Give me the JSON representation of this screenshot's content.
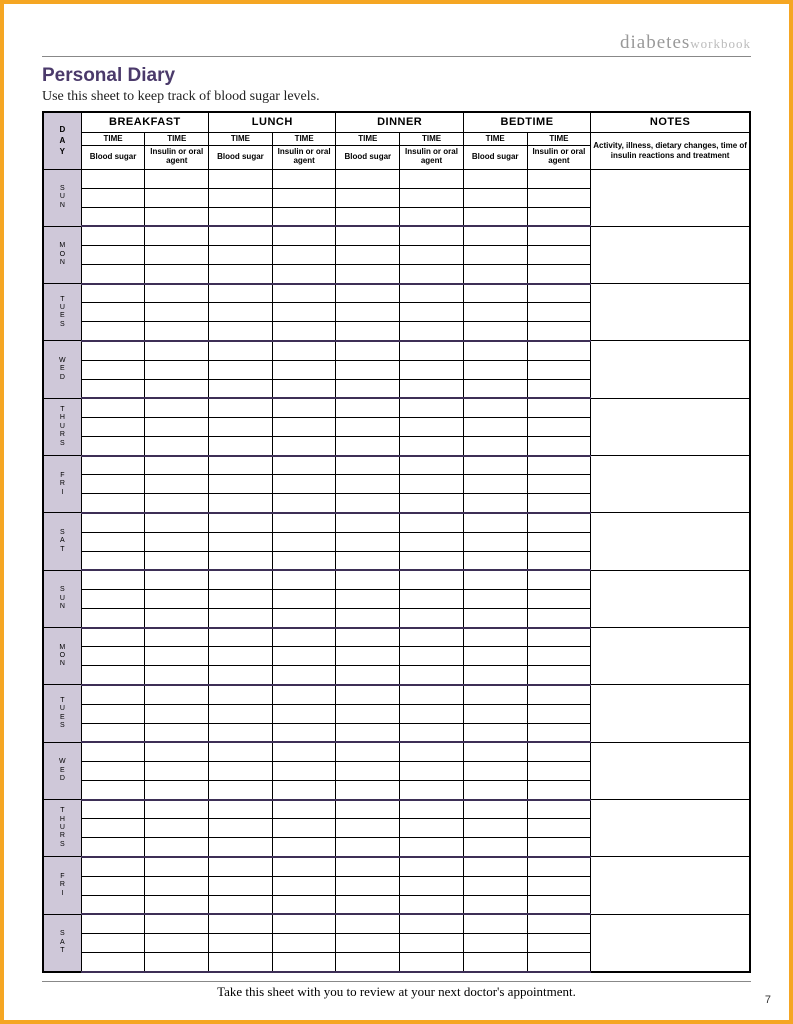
{
  "brand": {
    "main": "diabetes",
    "sub": "workbook"
  },
  "title": "Personal Diary",
  "subtitle": "Use this sheet to keep track of blood sugar levels.",
  "header": {
    "day_label": "D\nA\nY",
    "meals": [
      "BREAKFAST",
      "LUNCH",
      "DINNER",
      "BEDTIME"
    ],
    "notes_label": "NOTES",
    "time_label": "TIME",
    "blood_label": "Blood sugar",
    "insulin_label": "Insulin or oral agent",
    "notes_desc": "Activity, illness, dietary changes, time of insulin reactions and treatment"
  },
  "days": [
    "SUN",
    "MON",
    "TUES",
    "WED",
    "THURS",
    "FRI",
    "SAT",
    "SUN",
    "MON",
    "TUES",
    "WED",
    "THURS",
    "FRI",
    "SAT"
  ],
  "footer": "Take this sheet with you to review at your next doctor's appointment.",
  "page_number": "7",
  "colors": {
    "frame_border": "#f5a623",
    "day_col_bg": "#cfc8d9",
    "title_color": "#4b3a6b",
    "week_divider": "#3d2f56"
  }
}
